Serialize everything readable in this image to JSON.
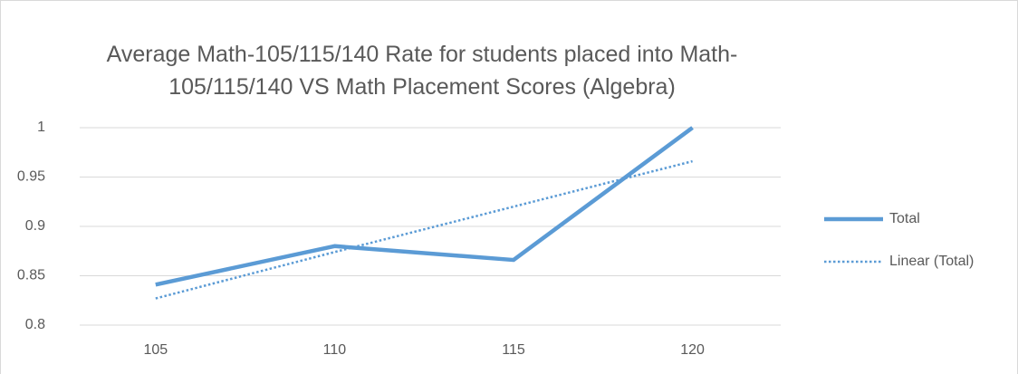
{
  "chart_data": {
    "type": "line",
    "title": "Average Math-105/115/140 Rate for students placed into Math-105/115/140 VS Math Placement Scores (Algebra)",
    "categories": [
      "105",
      "110",
      "115",
      "120"
    ],
    "series": [
      {
        "name": "Total",
        "color": "#5b9bd5",
        "values": [
          0.841,
          0.88,
          0.866,
          1.0
        ]
      },
      {
        "name": "Linear (Total)",
        "color": "#5b9bd5",
        "dashed": true,
        "values": [
          0.827,
          0.874,
          0.92,
          0.966
        ]
      }
    ],
    "ylim": [
      0.8,
      1
    ],
    "yticks": [
      0.8,
      0.85,
      0.9,
      0.95,
      1
    ],
    "grid": true,
    "legend": "right"
  }
}
